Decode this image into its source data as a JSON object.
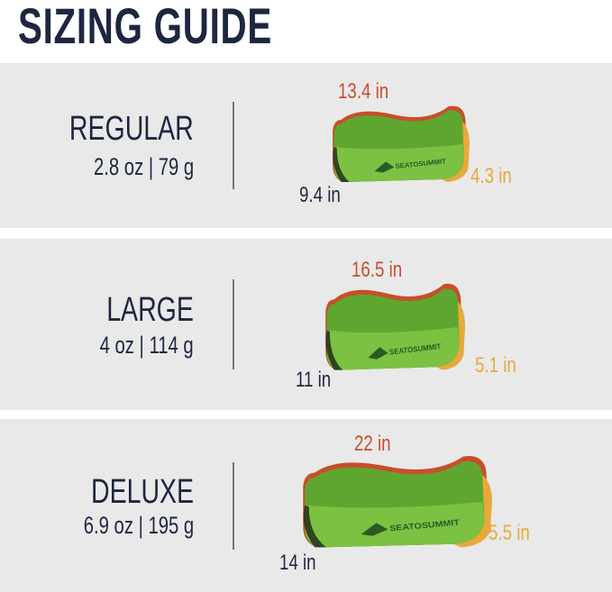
{
  "title": "SIZING GUIDE",
  "colors": {
    "navy": "#1e2640",
    "length": "#c64f2b",
    "height": "#e9a93a",
    "pillow_green": "#7cc142",
    "panel": "#e9e9e9"
  },
  "sizes": [
    {
      "name": "REGULAR",
      "weight": "2.8 oz | 79 g",
      "length": "13.4 in",
      "height": "4.3 in",
      "width": "9.4 in",
      "brand": "SEA TO SUMMIT"
    },
    {
      "name": "LARGE",
      "weight": "4 oz | 114 g",
      "length": "16.5 in",
      "height": "5.1 in",
      "width": "11 in",
      "brand": "SEA TO SUMMIT"
    },
    {
      "name": "DELUXE",
      "weight": "6.9 oz | 195 g",
      "length": "22 in",
      "height": "5.5 in",
      "width": "14 in",
      "brand": "SEA TO SUMMIT"
    }
  ]
}
